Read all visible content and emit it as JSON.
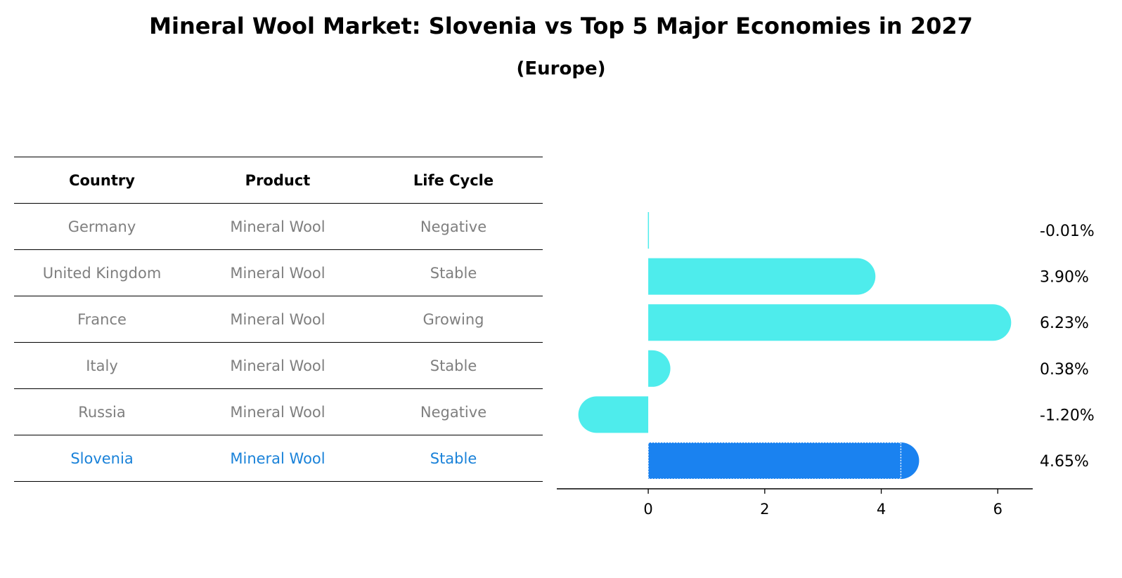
{
  "title": "Mineral Wool Market: Slovenia vs Top 5 Major Economies in 2027",
  "subtitle": "(Europe)",
  "table": {
    "headers": [
      "Country",
      "Product",
      "Life Cycle"
    ],
    "rows": [
      {
        "country": "Germany",
        "product": "Mineral Wool",
        "life_cycle": "Negative"
      },
      {
        "country": "United Kingdom",
        "product": "Mineral Wool",
        "life_cycle": "Stable"
      },
      {
        "country": "France",
        "product": "Mineral Wool",
        "life_cycle": "Growing"
      },
      {
        "country": "Italy",
        "product": "Mineral Wool",
        "life_cycle": "Stable"
      },
      {
        "country": "Russia",
        "product": "Mineral Wool",
        "life_cycle": "Negative"
      },
      {
        "country": "Slovenia",
        "product": "Mineral Wool",
        "life_cycle": "Stable"
      }
    ]
  },
  "colors": {
    "bar": "#4eecec",
    "highlight": "#1a82f0",
    "muted_text": "#7f7f7f",
    "highlight_text": "#1a82d9"
  },
  "chart_data": {
    "type": "bar",
    "orientation": "horizontal",
    "categories": [
      "Germany",
      "United Kingdom",
      "France",
      "Italy",
      "Russia",
      "Slovenia"
    ],
    "values": [
      -0.01,
      3.9,
      6.23,
      0.38,
      -1.2,
      4.65
    ],
    "value_labels": [
      "-0.01%",
      "3.90%",
      "6.23%",
      "0.38%",
      "-1.20%",
      "4.65%"
    ],
    "highlight_category": "Slovenia",
    "xlim": [
      -1.57,
      6.6
    ],
    "xticks": [
      0,
      2,
      4,
      6
    ],
    "xlabel": "",
    "ylabel": "",
    "grid": false,
    "legend": "none"
  }
}
